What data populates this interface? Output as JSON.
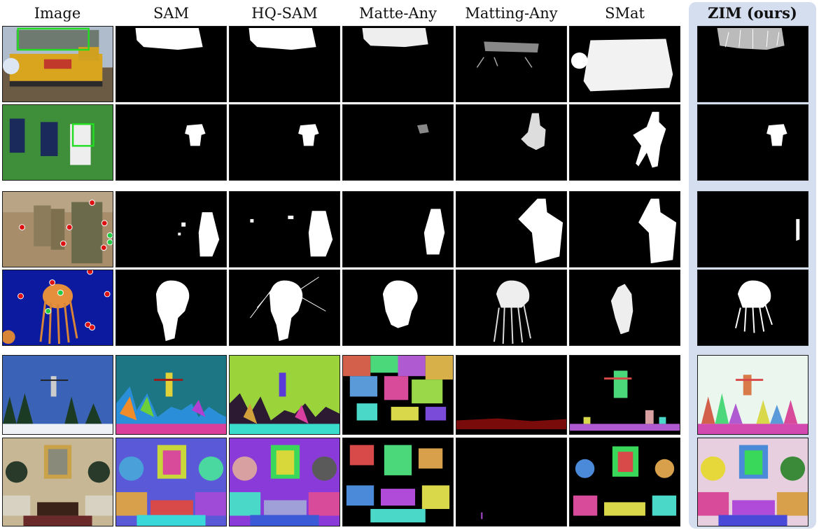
{
  "figure": {
    "columns": [
      {
        "key": "image",
        "label": "Image"
      },
      {
        "key": "sam",
        "label": "SAM"
      },
      {
        "key": "hqsam",
        "label": "HQ-SAM"
      },
      {
        "key": "matteany",
        "label": "Matte-Any"
      },
      {
        "key": "mattingany",
        "label": "Matting-Any"
      },
      {
        "key": "smat",
        "label": "SMat"
      },
      {
        "key": "zim",
        "label": "ZIM (ours)"
      }
    ],
    "rows": [
      {
        "key": "train",
        "prompt": "box"
      },
      {
        "key": "soccer",
        "prompt": "box"
      },
      {
        "key": "soldiers",
        "prompt": "points"
      },
      {
        "key": "jellyfish",
        "prompt": "points"
      },
      {
        "key": "skier",
        "prompt": "automatic"
      },
      {
        "key": "living-room",
        "prompt": "automatic"
      }
    ],
    "colors": {
      "highlight_background": "#d4deef",
      "box_prompt": "#22dd22",
      "positive_point": "#22cc44",
      "negative_point": "#dd1111"
    }
  }
}
